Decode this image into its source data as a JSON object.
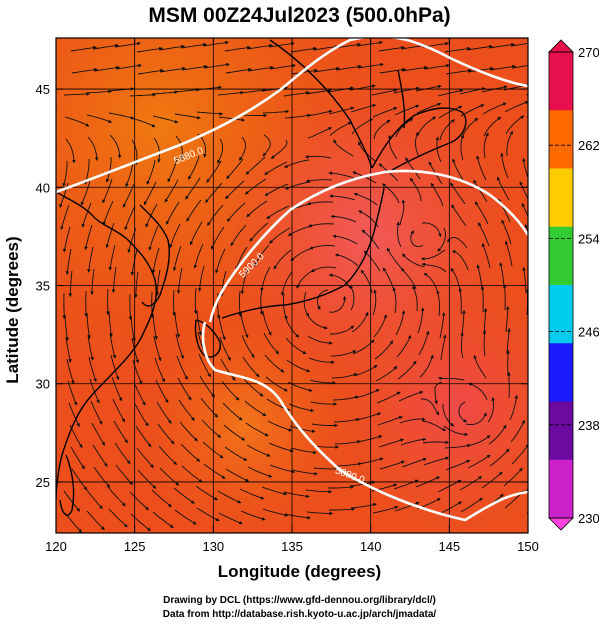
{
  "title": "MSM 00Z24Jul2023 (500.0hPa)",
  "map": {
    "xlabel": "Longitude (degrees)",
    "ylabel": "Latitude  (degrees)",
    "lon_range": [
      120,
      150
    ],
    "lat_range": [
      22.4,
      47.6
    ],
    "lon_ticks": [
      120,
      125,
      130,
      135,
      140,
      145,
      150
    ],
    "lat_ticks": [
      25,
      30,
      35,
      40,
      45
    ],
    "grid": true,
    "contours": [
      {
        "label": "5880.0"
      },
      {
        "label": "5900.0"
      },
      {
        "label": "5880.0"
      }
    ]
  },
  "colorbar": {
    "min": 230,
    "max": 270,
    "ticks": [
      "270",
      "262",
      "254",
      "246",
      "238",
      "230"
    ],
    "colors": [
      "#e8104c",
      "#ff6a00",
      "#ffcc00",
      "#33cc33",
      "#00ccee",
      "#1a1aff",
      "#6a0aa0",
      "#cc22cc"
    ]
  },
  "credits": {
    "line1": "Drawing by DCL (https://www.gfd-dennou.org/library/dcl/)",
    "line2": "Data from http://database.rish.kyoto-u.ac.jp/arch/jmadata/"
  }
}
